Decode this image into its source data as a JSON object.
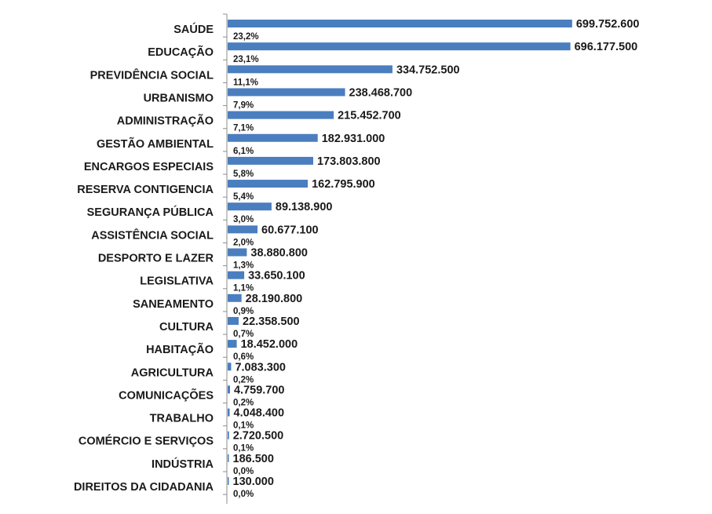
{
  "chart_data": {
    "type": "bar",
    "orientation": "horizontal",
    "categories": [
      "SAÚDE",
      "EDUCAÇÃO",
      "PREVIDÊNCIA SOCIAL",
      "URBANISMO",
      "ADMINISTRAÇÃO",
      "GESTÃO AMBIENTAL",
      "ENCARGOS ESPECIAIS",
      "RESERVA CONTIGENCIA",
      "SEGURANÇA PÚBLICA",
      "ASSISTÊNCIA SOCIAL",
      "DESPORTO E LAZER",
      "LEGISLATIVA",
      "SANEAMENTO",
      "CULTURA",
      "HABITAÇÃO",
      "AGRICULTURA",
      "COMUNICAÇÕES",
      "TRABALHO",
      "COMÉRCIO E SERVIÇOS",
      "INDÚSTRIA",
      "DIREITOS DA CIDADANIA"
    ],
    "values": [
      699752600,
      696177500,
      334752500,
      238468700,
      215452700,
      182931000,
      173803800,
      162795900,
      89138900,
      60677100,
      38880800,
      33650100,
      28190800,
      22358500,
      18452000,
      7083300,
      4759700,
      4048400,
      2720500,
      186500,
      130000
    ],
    "value_labels": [
      "699.752.600",
      "696.177.500",
      "334.752.500",
      "238.468.700",
      "215.452.700",
      "182.931.000",
      "173.803.800",
      "162.795.900",
      "89.138.900",
      "60.677.100",
      "38.880.800",
      "33.650.100",
      "28.190.800",
      "22.358.500",
      "18.452.000",
      "7.083.300",
      "4.759.700",
      "4.048.400",
      "2.720.500",
      "186.500",
      "130.000"
    ],
    "percent_labels": [
      "23,2%",
      "23,1%",
      "11,1%",
      "7,9%",
      "7,1%",
      "6,1%",
      "5,8%",
      "5,4%",
      "3,0%",
      "2,0%",
      "1,3%",
      "1,1%",
      "0,9%",
      "0,7%",
      "0,6%",
      "0,2%",
      "0,2%",
      "0,1%",
      "0,1%",
      "0,0%",
      "0,0%"
    ],
    "title": "",
    "xlabel": "",
    "ylabel": "",
    "xlim": [
      0,
      700000000
    ],
    "grid": false,
    "legend": "none",
    "colors": {
      "bar": "#4a7ebf",
      "axis": "#8c8c8c",
      "text": "#1a1a1a",
      "background": "#ffffff"
    }
  }
}
